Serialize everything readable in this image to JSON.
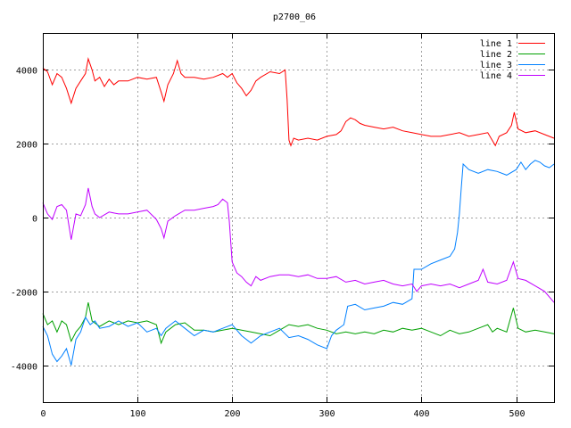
{
  "chart_data": {
    "type": "line",
    "title": "p2700_06",
    "xlabel": "",
    "ylabel": "",
    "xlim": [
      0,
      540
    ],
    "ylim": [
      -5000,
      5000
    ],
    "xticks": [
      0,
      100,
      200,
      300,
      400,
      500
    ],
    "yticks": [
      -4000,
      -2000,
      0,
      2000,
      4000
    ],
    "grid": true,
    "legend_position": "top-right",
    "series": [
      {
        "name": "line 1",
        "color": "#ff0000",
        "points": [
          [
            0,
            4050
          ],
          [
            5,
            3950
          ],
          [
            10,
            3600
          ],
          [
            15,
            3900
          ],
          [
            20,
            3800
          ],
          [
            25,
            3500
          ],
          [
            30,
            3100
          ],
          [
            35,
            3500
          ],
          [
            40,
            3700
          ],
          [
            45,
            3900
          ],
          [
            48,
            4300
          ],
          [
            52,
            4000
          ],
          [
            55,
            3700
          ],
          [
            60,
            3800
          ],
          [
            65,
            3550
          ],
          [
            70,
            3750
          ],
          [
            75,
            3600
          ],
          [
            80,
            3700
          ],
          [
            90,
            3700
          ],
          [
            100,
            3800
          ],
          [
            110,
            3750
          ],
          [
            120,
            3800
          ],
          [
            125,
            3400
          ],
          [
            128,
            3150
          ],
          [
            132,
            3600
          ],
          [
            138,
            3900
          ],
          [
            142,
            4250
          ],
          [
            146,
            3900
          ],
          [
            150,
            3800
          ],
          [
            160,
            3800
          ],
          [
            170,
            3750
          ],
          [
            180,
            3800
          ],
          [
            190,
            3900
          ],
          [
            195,
            3800
          ],
          [
            200,
            3900
          ],
          [
            205,
            3650
          ],
          [
            210,
            3500
          ],
          [
            215,
            3300
          ],
          [
            220,
            3450
          ],
          [
            225,
            3700
          ],
          [
            230,
            3800
          ],
          [
            240,
            3950
          ],
          [
            250,
            3900
          ],
          [
            256,
            4000
          ],
          [
            258,
            3200
          ],
          [
            260,
            2100
          ],
          [
            262,
            1950
          ],
          [
            265,
            2150
          ],
          [
            270,
            2100
          ],
          [
            280,
            2150
          ],
          [
            290,
            2100
          ],
          [
            300,
            2200
          ],
          [
            310,
            2250
          ],
          [
            315,
            2350
          ],
          [
            320,
            2600
          ],
          [
            325,
            2700
          ],
          [
            330,
            2650
          ],
          [
            335,
            2550
          ],
          [
            340,
            2500
          ],
          [
            350,
            2450
          ],
          [
            360,
            2400
          ],
          [
            370,
            2450
          ],
          [
            380,
            2350
          ],
          [
            390,
            2300
          ],
          [
            400,
            2250
          ],
          [
            410,
            2200
          ],
          [
            420,
            2200
          ],
          [
            430,
            2250
          ],
          [
            440,
            2300
          ],
          [
            450,
            2200
          ],
          [
            460,
            2250
          ],
          [
            470,
            2300
          ],
          [
            478,
            1950
          ],
          [
            482,
            2200
          ],
          [
            490,
            2300
          ],
          [
            495,
            2500
          ],
          [
            498,
            2850
          ],
          [
            502,
            2400
          ],
          [
            510,
            2300
          ],
          [
            520,
            2350
          ],
          [
            530,
            2250
          ],
          [
            540,
            2150
          ]
        ]
      },
      {
        "name": "line 2",
        "color": "#00a000",
        "points": [
          [
            0,
            -2600
          ],
          [
            5,
            -2900
          ],
          [
            10,
            -2800
          ],
          [
            15,
            -3100
          ],
          [
            20,
            -2800
          ],
          [
            25,
            -2900
          ],
          [
            30,
            -3350
          ],
          [
            35,
            -3100
          ],
          [
            40,
            -2950
          ],
          [
            45,
            -2700
          ],
          [
            48,
            -2300
          ],
          [
            52,
            -2800
          ],
          [
            60,
            -2950
          ],
          [
            70,
            -2800
          ],
          [
            80,
            -2900
          ],
          [
            90,
            -2800
          ],
          [
            100,
            -2850
          ],
          [
            110,
            -2800
          ],
          [
            120,
            -2900
          ],
          [
            125,
            -3400
          ],
          [
            130,
            -3100
          ],
          [
            140,
            -2900
          ],
          [
            150,
            -2850
          ],
          [
            160,
            -3050
          ],
          [
            170,
            -3050
          ],
          [
            180,
            -3100
          ],
          [
            190,
            -3050
          ],
          [
            200,
            -3000
          ],
          [
            210,
            -3050
          ],
          [
            220,
            -3100
          ],
          [
            230,
            -3150
          ],
          [
            240,
            -3200
          ],
          [
            250,
            -3050
          ],
          [
            260,
            -2900
          ],
          [
            270,
            -2950
          ],
          [
            280,
            -2900
          ],
          [
            290,
            -3000
          ],
          [
            300,
            -3050
          ],
          [
            310,
            -3150
          ],
          [
            320,
            -3100
          ],
          [
            330,
            -3150
          ],
          [
            340,
            -3100
          ],
          [
            350,
            -3150
          ],
          [
            360,
            -3050
          ],
          [
            370,
            -3100
          ],
          [
            380,
            -3000
          ],
          [
            390,
            -3050
          ],
          [
            400,
            -3000
          ],
          [
            410,
            -3100
          ],
          [
            420,
            -3200
          ],
          [
            430,
            -3050
          ],
          [
            440,
            -3150
          ],
          [
            450,
            -3100
          ],
          [
            460,
            -3000
          ],
          [
            470,
            -2900
          ],
          [
            475,
            -3100
          ],
          [
            480,
            -3000
          ],
          [
            490,
            -3100
          ],
          [
            497,
            -2450
          ],
          [
            502,
            -3000
          ],
          [
            510,
            -3100
          ],
          [
            520,
            -3050
          ],
          [
            530,
            -3100
          ],
          [
            540,
            -3150
          ]
        ]
      },
      {
        "name": "line 3",
        "color": "#0080ff",
        "points": [
          [
            0,
            -2950
          ],
          [
            5,
            -3200
          ],
          [
            10,
            -3700
          ],
          [
            15,
            -3900
          ],
          [
            20,
            -3750
          ],
          [
            25,
            -3550
          ],
          [
            30,
            -4000
          ],
          [
            35,
            -3300
          ],
          [
            40,
            -3100
          ],
          [
            45,
            -2700
          ],
          [
            50,
            -2900
          ],
          [
            55,
            -2800
          ],
          [
            60,
            -3000
          ],
          [
            70,
            -2950
          ],
          [
            80,
            -2800
          ],
          [
            90,
            -2950
          ],
          [
            100,
            -2850
          ],
          [
            110,
            -3100
          ],
          [
            120,
            -3000
          ],
          [
            125,
            -3200
          ],
          [
            130,
            -3000
          ],
          [
            140,
            -2800
          ],
          [
            150,
            -3000
          ],
          [
            160,
            -3200
          ],
          [
            170,
            -3050
          ],
          [
            180,
            -3100
          ],
          [
            190,
            -3000
          ],
          [
            200,
            -2900
          ],
          [
            210,
            -3200
          ],
          [
            220,
            -3400
          ],
          [
            230,
            -3200
          ],
          [
            240,
            -3100
          ],
          [
            250,
            -3000
          ],
          [
            260,
            -3250
          ],
          [
            270,
            -3200
          ],
          [
            280,
            -3300
          ],
          [
            290,
            -3450
          ],
          [
            300,
            -3550
          ],
          [
            305,
            -3200
          ],
          [
            310,
            -3050
          ],
          [
            318,
            -2900
          ],
          [
            322,
            -2400
          ],
          [
            330,
            -2350
          ],
          [
            340,
            -2500
          ],
          [
            350,
            -2450
          ],
          [
            360,
            -2400
          ],
          [
            370,
            -2300
          ],
          [
            380,
            -2350
          ],
          [
            390,
            -2200
          ],
          [
            392,
            -1400
          ],
          [
            400,
            -1400
          ],
          [
            410,
            -1250
          ],
          [
            420,
            -1150
          ],
          [
            430,
            -1050
          ],
          [
            435,
            -850
          ],
          [
            438,
            -400
          ],
          [
            440,
            100
          ],
          [
            442,
            800
          ],
          [
            444,
            1450
          ],
          [
            450,
            1300
          ],
          [
            460,
            1200
          ],
          [
            470,
            1300
          ],
          [
            480,
            1250
          ],
          [
            490,
            1150
          ],
          [
            500,
            1300
          ],
          [
            505,
            1500
          ],
          [
            510,
            1300
          ],
          [
            515,
            1450
          ],
          [
            520,
            1550
          ],
          [
            525,
            1500
          ],
          [
            530,
            1400
          ],
          [
            535,
            1350
          ],
          [
            540,
            1450
          ]
        ]
      },
      {
        "name": "line 4",
        "color": "#c000ff",
        "points": [
          [
            0,
            400
          ],
          [
            5,
            100
          ],
          [
            10,
            -50
          ],
          [
            15,
            300
          ],
          [
            20,
            350
          ],
          [
            25,
            200
          ],
          [
            30,
            -600
          ],
          [
            35,
            100
          ],
          [
            40,
            50
          ],
          [
            45,
            350
          ],
          [
            48,
            800
          ],
          [
            52,
            300
          ],
          [
            55,
            100
          ],
          [
            60,
            0
          ],
          [
            70,
            150
          ],
          [
            80,
            100
          ],
          [
            90,
            100
          ],
          [
            100,
            150
          ],
          [
            110,
            200
          ],
          [
            120,
            -50
          ],
          [
            125,
            -300
          ],
          [
            128,
            -550
          ],
          [
            132,
            -100
          ],
          [
            140,
            50
          ],
          [
            150,
            200
          ],
          [
            160,
            200
          ],
          [
            170,
            250
          ],
          [
            180,
            300
          ],
          [
            185,
            350
          ],
          [
            190,
            500
          ],
          [
            195,
            400
          ],
          [
            197,
            -100
          ],
          [
            200,
            -1200
          ],
          [
            205,
            -1500
          ],
          [
            210,
            -1600
          ],
          [
            215,
            -1750
          ],
          [
            220,
            -1850
          ],
          [
            225,
            -1600
          ],
          [
            230,
            -1700
          ],
          [
            240,
            -1600
          ],
          [
            250,
            -1550
          ],
          [
            260,
            -1550
          ],
          [
            270,
            -1600
          ],
          [
            280,
            -1550
          ],
          [
            290,
            -1650
          ],
          [
            300,
            -1650
          ],
          [
            310,
            -1600
          ],
          [
            320,
            -1750
          ],
          [
            330,
            -1700
          ],
          [
            340,
            -1800
          ],
          [
            350,
            -1750
          ],
          [
            360,
            -1700
          ],
          [
            370,
            -1800
          ],
          [
            380,
            -1850
          ],
          [
            390,
            -1800
          ],
          [
            395,
            -2000
          ],
          [
            400,
            -1850
          ],
          [
            410,
            -1800
          ],
          [
            420,
            -1850
          ],
          [
            430,
            -1800
          ],
          [
            440,
            -1900
          ],
          [
            450,
            -1800
          ],
          [
            460,
            -1700
          ],
          [
            465,
            -1400
          ],
          [
            470,
            -1750
          ],
          [
            480,
            -1800
          ],
          [
            490,
            -1700
          ],
          [
            497,
            -1200
          ],
          [
            502,
            -1650
          ],
          [
            510,
            -1700
          ],
          [
            520,
            -1850
          ],
          [
            530,
            -2000
          ],
          [
            540,
            -2300
          ]
        ]
      }
    ]
  }
}
